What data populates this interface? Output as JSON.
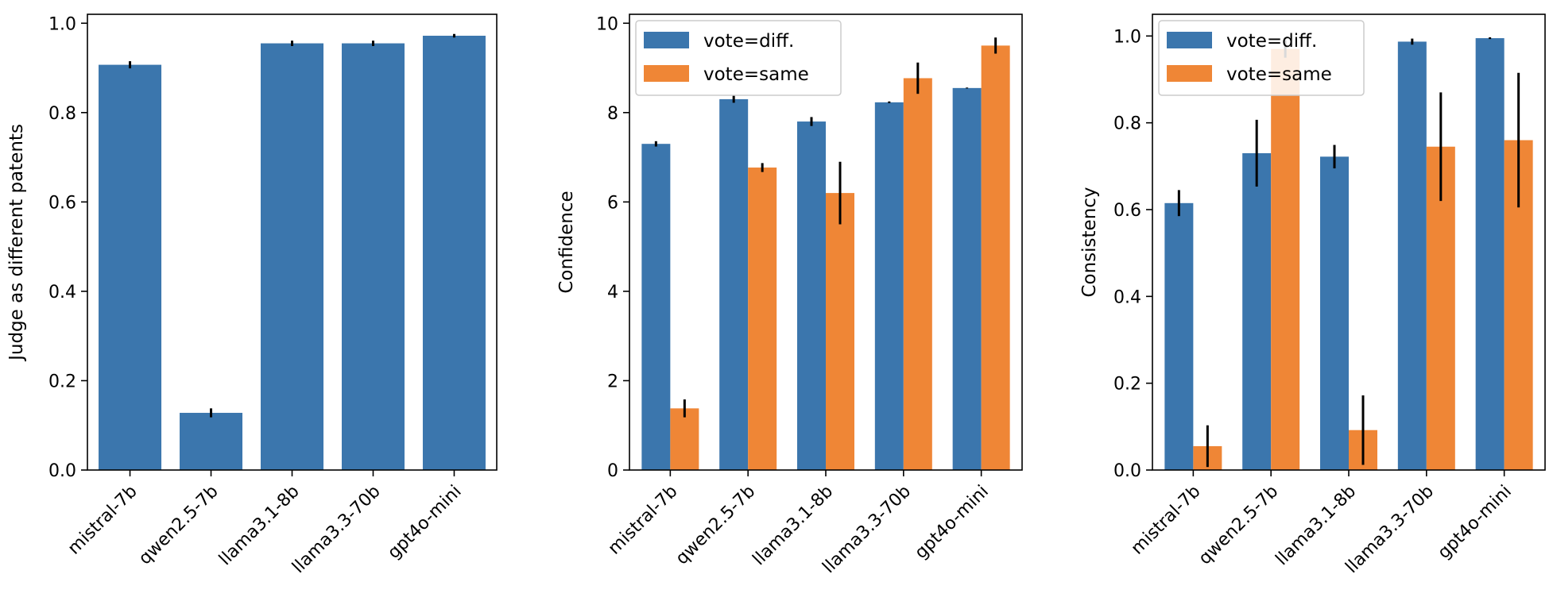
{
  "colors": {
    "diff": "#3b76ad",
    "same": "#ef8636",
    "axis": "#000000",
    "background": "#ffffff"
  },
  "chart_data": [
    {
      "type": "bar",
      "title": "",
      "xlabel": "",
      "ylabel": "Judge as different patents",
      "ylim": [
        0,
        1.02
      ],
      "yticks": [
        0.0,
        0.2,
        0.4,
        0.6,
        0.8,
        1.0
      ],
      "ytick_labels": [
        "0.0",
        "0.2",
        "0.4",
        "0.6",
        "0.8",
        "1.0"
      ],
      "categories": [
        "mistral-7b",
        "qwen2.5-7b",
        "llama3.1-8b",
        "llama3.3-70b",
        "gpt4o-mini"
      ],
      "legend": null,
      "series": [
        {
          "name": "",
          "color_key": "diff",
          "values": [
            0.907,
            0.128,
            0.955,
            0.955,
            0.972
          ],
          "errors": [
            0.008,
            0.01,
            0.006,
            0.006,
            0.004
          ]
        }
      ]
    },
    {
      "type": "bar",
      "title": "",
      "xlabel": "",
      "ylabel": "Confidence",
      "ylim": [
        0,
        10.2
      ],
      "yticks": [
        0,
        2,
        4,
        6,
        8,
        10
      ],
      "ytick_labels": [
        "0",
        "2",
        "4",
        "6",
        "8",
        "10"
      ],
      "categories": [
        "mistral-7b",
        "qwen2.5-7b",
        "llama3.1-8b",
        "llama3.3-70b",
        "gpt4o-mini"
      ],
      "legend": "top-left",
      "series": [
        {
          "name": "vote=diff.",
          "color_key": "diff",
          "values": [
            7.3,
            8.3,
            7.8,
            8.23,
            8.55
          ],
          "errors": [
            0.06,
            0.08,
            0.1,
            0.02,
            0.01
          ]
        },
        {
          "name": "vote=same",
          "color_key": "same",
          "values": [
            1.38,
            6.77,
            6.2,
            8.77,
            9.5
          ],
          "errors": [
            0.2,
            0.1,
            0.7,
            0.35,
            0.18
          ]
        }
      ]
    },
    {
      "type": "bar",
      "title": "",
      "xlabel": "",
      "ylabel": "Consistency",
      "ylim": [
        0,
        1.05
      ],
      "yticks": [
        0.0,
        0.2,
        0.4,
        0.6,
        0.8,
        1.0
      ],
      "ytick_labels": [
        "0.0",
        "0.2",
        "0.4",
        "0.6",
        "0.8",
        "1.0"
      ],
      "categories": [
        "mistral-7b",
        "qwen2.5-7b",
        "llama3.1-8b",
        "llama3.3-70b",
        "gpt4o-mini"
      ],
      "legend": "top-left",
      "series": [
        {
          "name": "vote=diff.",
          "color_key": "diff",
          "values": [
            0.615,
            0.73,
            0.722,
            0.987,
            0.995
          ],
          "errors": [
            0.03,
            0.077,
            0.027,
            0.007,
            0.002
          ]
        },
        {
          "name": "vote=same",
          "color_key": "same",
          "values": [
            0.055,
            0.97,
            0.092,
            0.745,
            0.76
          ],
          "errors": [
            0.048,
            0.02,
            0.08,
            0.125,
            0.155
          ]
        }
      ]
    }
  ]
}
